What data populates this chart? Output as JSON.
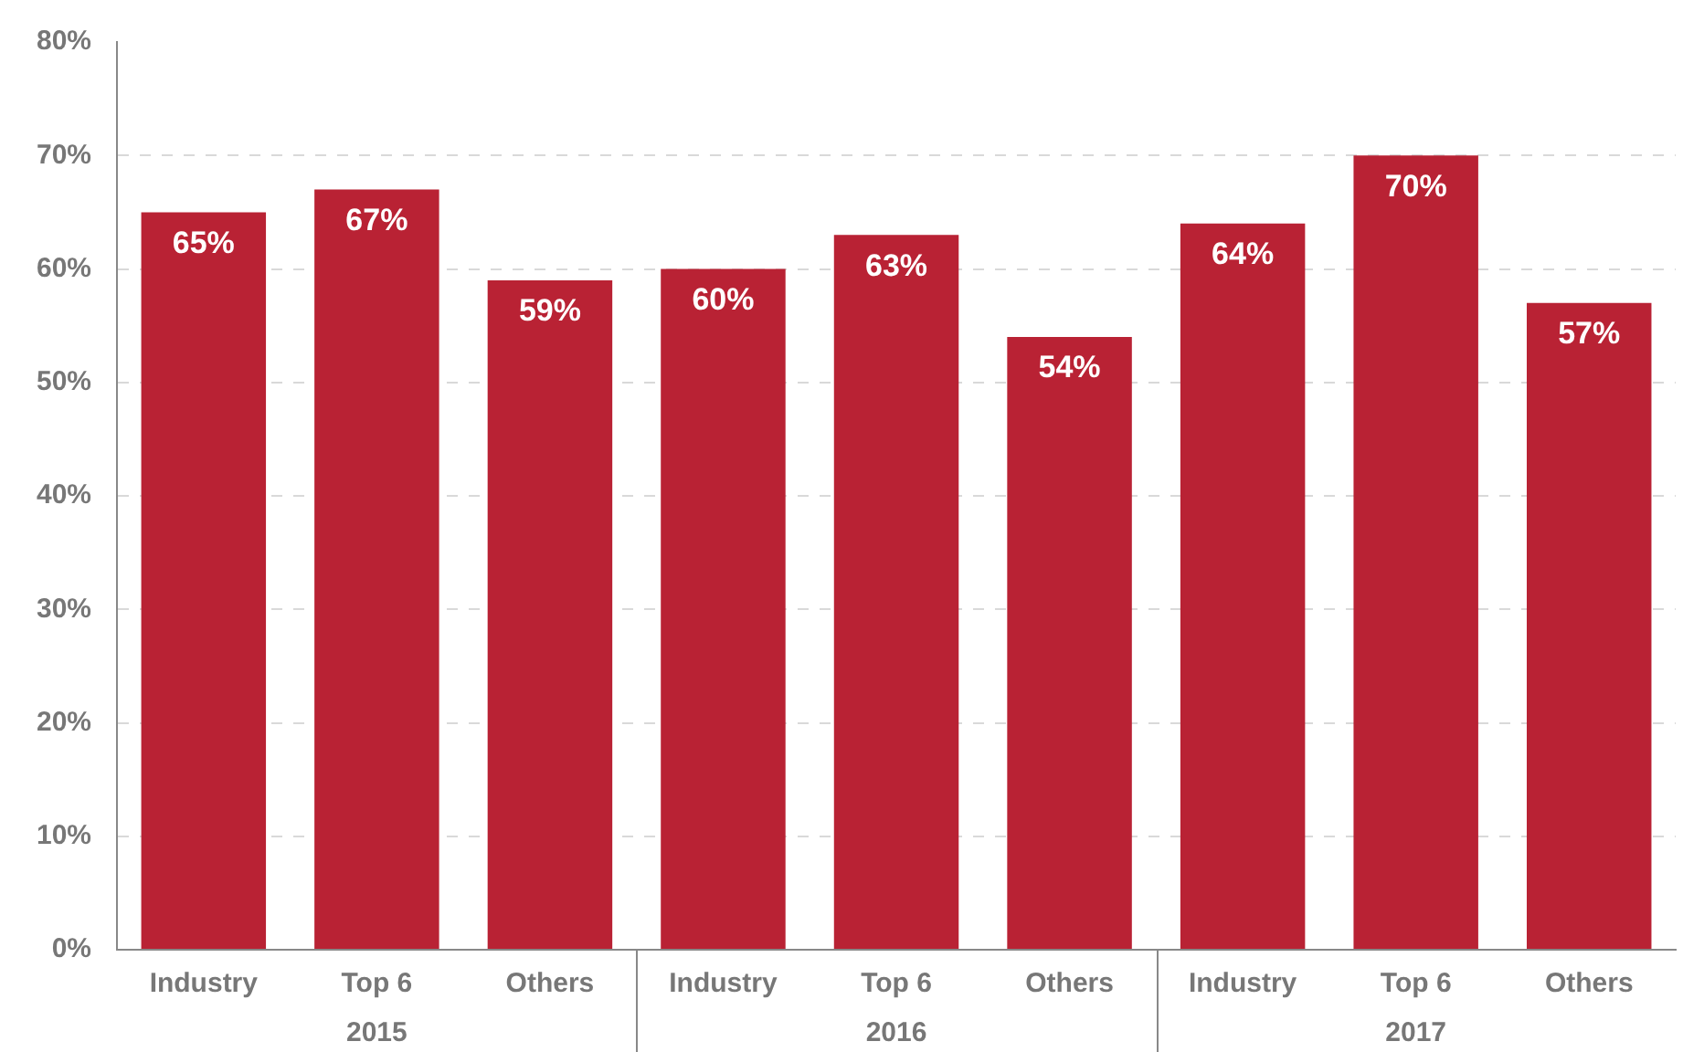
{
  "chart_data": {
    "type": "bar",
    "categories": [
      "Industry",
      "Top 6",
      "Others",
      "Industry",
      "Top 6",
      "Others",
      "Industry",
      "Top 6",
      "Others"
    ],
    "values": [
      65,
      67,
      59,
      60,
      63,
      54,
      64,
      70,
      57
    ],
    "value_labels": [
      "65%",
      "67%",
      "59%",
      "60%",
      "63%",
      "54%",
      "64%",
      "70%",
      "57%"
    ],
    "color": "#b92234",
    "ylim": [
      0,
      80
    ],
    "yticks": [
      {
        "value": 0,
        "label": "0%"
      },
      {
        "value": 10,
        "label": "10%"
      },
      {
        "value": 20,
        "label": "20%"
      },
      {
        "value": 30,
        "label": "30%"
      },
      {
        "value": 40,
        "label": "40%"
      },
      {
        "value": 50,
        "label": "50%"
      },
      {
        "value": 60,
        "label": "60%"
      },
      {
        "value": 70,
        "label": "70%"
      },
      {
        "value": 80,
        "label": "80%"
      }
    ],
    "annotations": [
      "2015",
      "2016",
      "2017"
    ],
    "grid": "y"
  }
}
